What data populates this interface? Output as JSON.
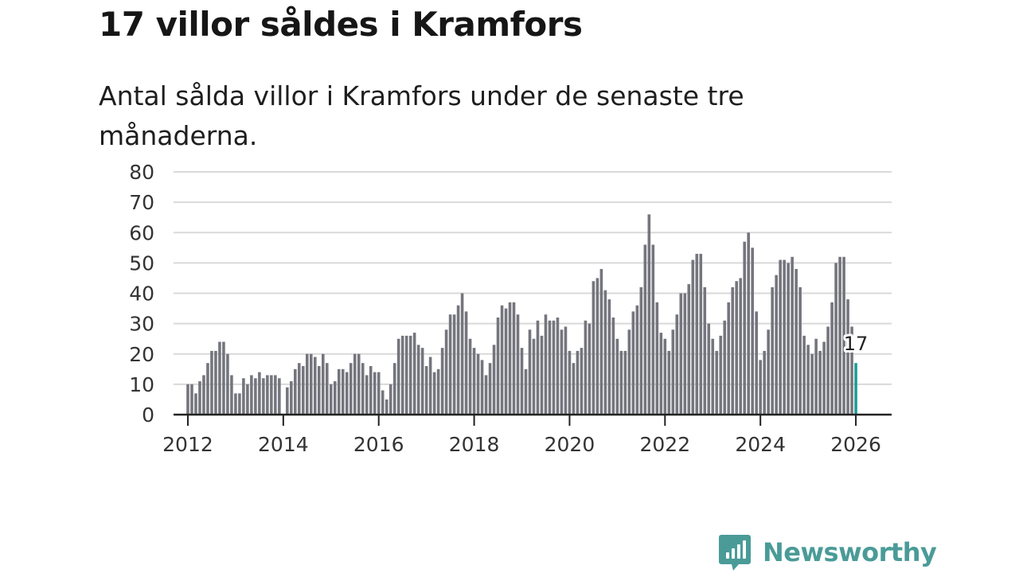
{
  "title": "17 villor såldes i Kramfors",
  "subtitle": "Antal sålda villor i Kramfors under de senaste tre månaderna.",
  "brand": {
    "name": "Newsworthy",
    "color": "#4a9b98"
  },
  "chart_data": {
    "type": "bar",
    "title": "17 villor såldes i Kramfors",
    "xlabel": "",
    "ylabel": "",
    "ylim": [
      0,
      80
    ],
    "yticks": [
      0,
      10,
      20,
      30,
      40,
      50,
      60,
      70,
      80
    ],
    "xlim": [
      2011.7,
      2026.75
    ],
    "xticks": [
      2012,
      2014,
      2016,
      2018,
      2020,
      2022,
      2024,
      2026
    ],
    "start_year": 2012,
    "bar_color": "#75757e",
    "highlight_color": "#1a9c96",
    "highlight_label": "17",
    "values": [
      10,
      10,
      7,
      11,
      13,
      17,
      21,
      21,
      24,
      24,
      20,
      13,
      7,
      7,
      12,
      10,
      13,
      12,
      14,
      12,
      13,
      13,
      13,
      12,
      0,
      9,
      11,
      15,
      17,
      16,
      20,
      20,
      19,
      16,
      20,
      17,
      10,
      11,
      15,
      15,
      14,
      17,
      20,
      20,
      17,
      13,
      16,
      14,
      14,
      8,
      5,
      10,
      17,
      25,
      26,
      26,
      26,
      27,
      23,
      22,
      16,
      19,
      14,
      15,
      22,
      28,
      33,
      33,
      36,
      40,
      34,
      25,
      22,
      20,
      18,
      13,
      17,
      23,
      32,
      36,
      35,
      37,
      37,
      33,
      22,
      15,
      28,
      25,
      31,
      26,
      33,
      31,
      31,
      32,
      28,
      29,
      21,
      17,
      21,
      22,
      31,
      30,
      44,
      45,
      48,
      41,
      38,
      32,
      25,
      21,
      21,
      28,
      34,
      36,
      42,
      56,
      66,
      56,
      37,
      27,
      25,
      21,
      28,
      33,
      40,
      40,
      43,
      51,
      53,
      53,
      42,
      30,
      25,
      21,
      26,
      31,
      37,
      42,
      44,
      45,
      57,
      60,
      55,
      34,
      18,
      21,
      28,
      42,
      46,
      51,
      51,
      50,
      52,
      48,
      42,
      26,
      23,
      20,
      25,
      21,
      24,
      29,
      37,
      50,
      52,
      52,
      38,
      29,
      17
    ]
  }
}
